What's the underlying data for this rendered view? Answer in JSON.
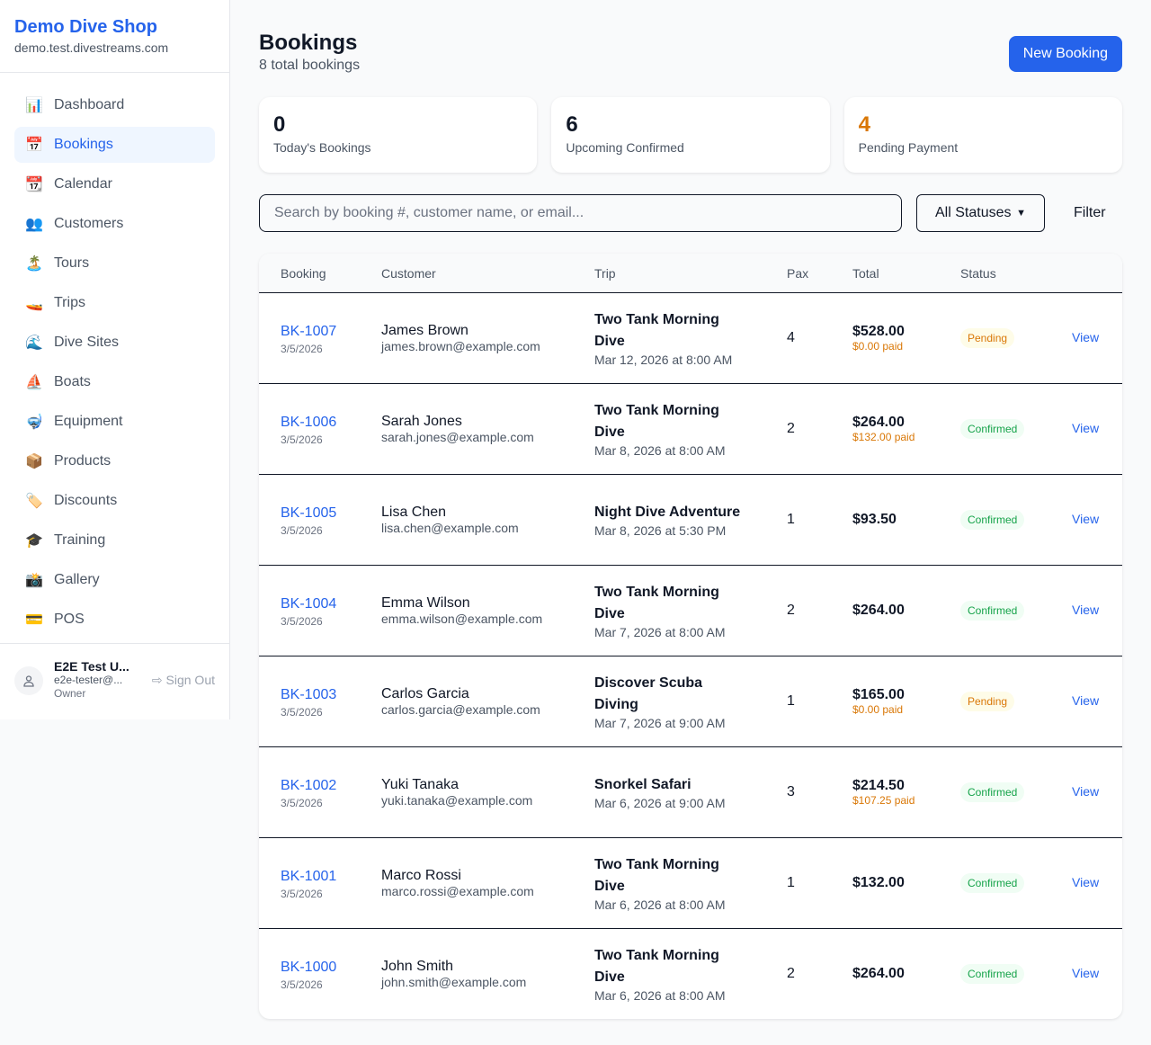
{
  "sidebar": {
    "brand": "Demo Dive Shop",
    "domain": "demo.test.divestreams.com",
    "items": [
      {
        "icon": "📊",
        "label": "Dashboard"
      },
      {
        "icon": "📅",
        "label": "Bookings",
        "active": true
      },
      {
        "icon": "📆",
        "label": "Calendar"
      },
      {
        "icon": "👥",
        "label": "Customers"
      },
      {
        "icon": "🏝️",
        "label": "Tours"
      },
      {
        "icon": "🚤",
        "label": "Trips"
      },
      {
        "icon": "🌊",
        "label": "Dive Sites"
      },
      {
        "icon": "⛵",
        "label": "Boats"
      },
      {
        "icon": "🤿",
        "label": "Equipment"
      },
      {
        "icon": "📦",
        "label": "Products"
      },
      {
        "icon": "🏷️",
        "label": "Discounts"
      },
      {
        "icon": "🎓",
        "label": "Training"
      },
      {
        "icon": "📸",
        "label": "Gallery"
      },
      {
        "icon": "💳",
        "label": "POS"
      }
    ],
    "user": {
      "name": "E2E Test U...",
      "email": "e2e-tester@...",
      "role": "Owner",
      "signout": "Sign Out"
    }
  },
  "header": {
    "title": "Bookings",
    "subtitle": "8 total bookings",
    "new_button": "New Booking"
  },
  "stats": [
    {
      "value": "0",
      "label": "Today's Bookings",
      "color": "#111827"
    },
    {
      "value": "6",
      "label": "Upcoming Confirmed",
      "color": "#111827"
    },
    {
      "value": "4",
      "label": "Pending Payment",
      "color": "#d97706"
    }
  ],
  "filters": {
    "search_placeholder": "Search by booking #, customer name, or email...",
    "status": "All Statuses",
    "filter_label": "Filter"
  },
  "table": {
    "headers": [
      "Booking",
      "Customer",
      "Trip",
      "Pax",
      "Total",
      "Status",
      ""
    ],
    "rows": [
      {
        "id": "BK-1007",
        "date": "3/5/2026",
        "name": "James Brown",
        "email": "james.brown@example.com",
        "trip": "Two Tank Morning Dive",
        "when": "Mar 12, 2026 at 8:00 AM",
        "pax": "4",
        "total": "$528.00",
        "paid": "$0.00 paid",
        "status": "Pending",
        "action": "View"
      },
      {
        "id": "BK-1006",
        "date": "3/5/2026",
        "name": "Sarah Jones",
        "email": "sarah.jones@example.com",
        "trip": "Two Tank Morning Dive",
        "when": "Mar 8, 2026 at 8:00 AM",
        "pax": "2",
        "total": "$264.00",
        "paid": "$132.00 paid",
        "status": "Confirmed",
        "action": "View"
      },
      {
        "id": "BK-1005",
        "date": "3/5/2026",
        "name": "Lisa Chen",
        "email": "lisa.chen@example.com",
        "trip": "Night Dive Adventure",
        "when": "Mar 8, 2026 at 5:30 PM",
        "pax": "1",
        "total": "$93.50",
        "paid": null,
        "status": "Confirmed",
        "action": "View"
      },
      {
        "id": "BK-1004",
        "date": "3/5/2026",
        "name": "Emma Wilson",
        "email": "emma.wilson@example.com",
        "trip": "Two Tank Morning Dive",
        "when": "Mar 7, 2026 at 8:00 AM",
        "pax": "2",
        "total": "$264.00",
        "paid": null,
        "status": "Confirmed",
        "action": "View"
      },
      {
        "id": "BK-1003",
        "date": "3/5/2026",
        "name": "Carlos Garcia",
        "email": "carlos.garcia@example.com",
        "trip": "Discover Scuba Diving",
        "when": "Mar 7, 2026 at 9:00 AM",
        "pax": "1",
        "total": "$165.00",
        "paid": "$0.00 paid",
        "status": "Pending",
        "action": "View"
      },
      {
        "id": "BK-1002",
        "date": "3/5/2026",
        "name": "Yuki Tanaka",
        "email": "yuki.tanaka@example.com",
        "trip": "Snorkel Safari",
        "when": "Mar 6, 2026 at 9:00 AM",
        "pax": "3",
        "total": "$214.50",
        "paid": "$107.25 paid",
        "status": "Confirmed",
        "action": "View"
      },
      {
        "id": "BK-1001",
        "date": "3/5/2026",
        "name": "Marco Rossi",
        "email": "marco.rossi@example.com",
        "trip": "Two Tank Morning Dive",
        "when": "Mar 6, 2026 at 8:00 AM",
        "pax": "1",
        "total": "$132.00",
        "paid": null,
        "status": "Confirmed",
        "action": "View"
      },
      {
        "id": "BK-1000",
        "date": "3/5/2026",
        "name": "John Smith",
        "email": "john.smith@example.com",
        "trip": "Two Tank Morning Dive",
        "when": "Mar 6, 2026 at 8:00 AM",
        "pax": "2",
        "total": "$264.00",
        "paid": null,
        "status": "Confirmed",
        "action": "View"
      }
    ]
  }
}
